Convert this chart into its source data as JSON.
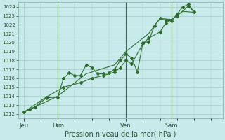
{
  "title": "",
  "xlabel": "Pression niveau de la mer( hPa )",
  "bg_color": "#c8eaea",
  "grid_color": "#a0c8c8",
  "line_color": "#2d6e2d",
  "vline_color": "#3a6e3a",
  "ylim": [
    1011.5,
    1024.5
  ],
  "yticks": [
    1012,
    1013,
    1014,
    1015,
    1016,
    1017,
    1018,
    1019,
    1020,
    1021,
    1022,
    1023,
    1024
  ],
  "xtick_labels": [
    "Jeu",
    "Dim",
    "Ven",
    "Sam"
  ],
  "xtick_positions": [
    0.5,
    3.5,
    9.5,
    13.5
  ],
  "xlim": [
    0,
    18
  ],
  "series1": [
    [
      0.5,
      1012.2
    ],
    [
      1.0,
      1012.5
    ],
    [
      1.5,
      1012.8
    ],
    [
      2.5,
      1013.8
    ],
    [
      3.5,
      1013.9
    ],
    [
      4.0,
      1016.0
    ],
    [
      4.5,
      1016.6
    ],
    [
      5.0,
      1016.3
    ],
    [
      5.5,
      1016.3
    ],
    [
      6.0,
      1017.5
    ],
    [
      6.5,
      1017.2
    ],
    [
      7.0,
      1016.5
    ],
    [
      7.5,
      1016.5
    ],
    [
      8.0,
      1016.6
    ],
    [
      8.5,
      1017.0
    ],
    [
      9.0,
      1018.0
    ],
    [
      9.5,
      1018.7
    ],
    [
      10.0,
      1018.3
    ],
    [
      10.5,
      1016.7
    ],
    [
      11.0,
      1020.0
    ],
    [
      11.5,
      1020.1
    ],
    [
      12.0,
      1021.9
    ],
    [
      12.5,
      1022.7
    ],
    [
      13.0,
      1022.5
    ],
    [
      13.5,
      1022.4
    ],
    [
      14.0,
      1023.2
    ],
    [
      14.5,
      1024.0
    ],
    [
      15.0,
      1024.3
    ],
    [
      15.5,
      1023.4
    ]
  ],
  "series2": [
    [
      0.5,
      1012.2
    ],
    [
      2.5,
      1013.9
    ],
    [
      4.0,
      1015.0
    ],
    [
      5.5,
      1015.5
    ],
    [
      6.5,
      1016.0
    ],
    [
      7.5,
      1016.3
    ],
    [
      8.5,
      1016.7
    ],
    [
      9.0,
      1017.2
    ],
    [
      9.5,
      1018.0
    ],
    [
      10.0,
      1017.6
    ],
    [
      11.0,
      1019.9
    ],
    [
      11.5,
      1020.5
    ],
    [
      12.5,
      1021.2
    ],
    [
      13.0,
      1022.2
    ],
    [
      14.0,
      1023.0
    ],
    [
      15.0,
      1024.1
    ],
    [
      15.5,
      1023.4
    ]
  ],
  "series3": [
    [
      0.5,
      1012.2
    ],
    [
      3.5,
      1014.0
    ],
    [
      6.0,
      1016.5
    ],
    [
      8.5,
      1017.5
    ],
    [
      9.5,
      1019.0
    ],
    [
      11.5,
      1021.0
    ],
    [
      12.5,
      1022.7
    ],
    [
      13.5,
      1022.6
    ],
    [
      14.5,
      1023.5
    ],
    [
      15.5,
      1023.4
    ]
  ],
  "vline_positions": [
    3.5,
    9.5,
    13.5
  ],
  "marker": "D",
  "marker_size": 2.0,
  "line_width": 0.8
}
